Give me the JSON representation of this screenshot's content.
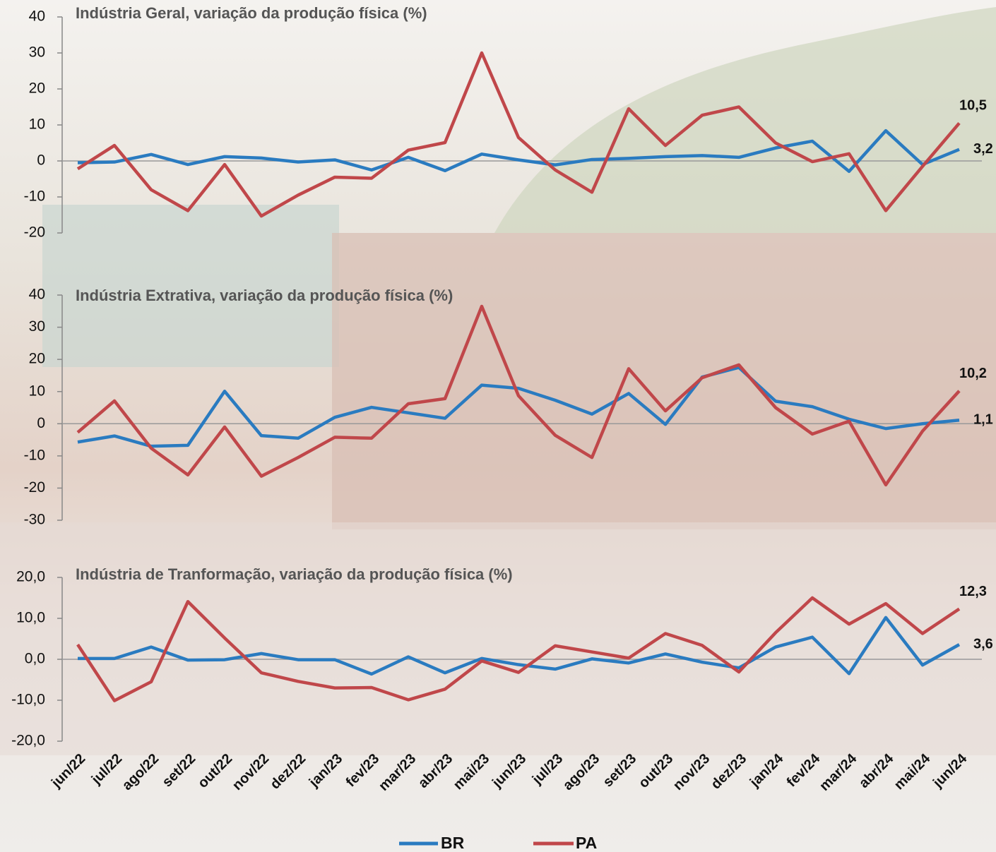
{
  "chart_data": [
    {
      "type": "line",
      "title": "Indústria Geral, variação da produção física (%)",
      "ylim": [
        -20,
        40
      ],
      "yticks": [
        -20,
        -10,
        0,
        10,
        20,
        30,
        40
      ],
      "series": [
        {
          "color": "#2a7bc0",
          "values": [
            -0.5,
            -0.3,
            1.8,
            -1,
            1.2,
            0.8,
            -0.3,
            0.3,
            -2.5,
            1,
            -2.7,
            1.9,
            0.3,
            -1.1,
            0.4,
            0.7,
            1.2,
            1.5,
            1.0,
            3.6,
            5.5,
            -2.9,
            8.4,
            -1.0,
            3.2
          ],
          "value_labels": [
            null,
            null,
            null,
            null,
            null,
            null,
            null,
            null,
            null,
            null,
            null,
            null,
            null,
            null,
            null,
            null,
            null,
            null,
            null,
            null,
            null,
            null,
            null,
            null,
            "3,2"
          ]
        },
        {
          "color": "#c0474a",
          "values": [
            -2.2,
            4.3,
            -8,
            -13.8,
            -1,
            -15.3,
            -9.5,
            -4.5,
            -4.8,
            3.0,
            5.1,
            30,
            6.5,
            -2.5,
            -8.7,
            14.5,
            4.3,
            12.7,
            15,
            5,
            -0.2,
            2,
            -13.8,
            -1.5,
            10.5
          ],
          "value_labels": [
            null,
            null,
            null,
            null,
            null,
            null,
            null,
            null,
            null,
            null,
            null,
            null,
            null,
            null,
            null,
            null,
            null,
            null,
            null,
            null,
            null,
            null,
            null,
            null,
            "10,5"
          ]
        }
      ]
    },
    {
      "type": "line",
      "title": "Indústria Extrativa, variação da produção física (%)",
      "ylim": [
        -30,
        40
      ],
      "yticks": [
        -30,
        -20,
        -10,
        0,
        10,
        20,
        30,
        40
      ],
      "series": [
        {
          "color": "#2a7bc0",
          "values": [
            -5.7,
            -3.8,
            -7,
            -6.7,
            10.1,
            -3.7,
            -4.5,
            2,
            5.1,
            3.4,
            1.7,
            12,
            11,
            7.3,
            3,
            9.4,
            -0.2,
            14.5,
            17.5,
            7,
            5.3,
            1.4,
            -1.5,
            0,
            1.1
          ],
          "value_labels": [
            null,
            null,
            null,
            null,
            null,
            null,
            null,
            null,
            null,
            null,
            null,
            null,
            null,
            null,
            null,
            null,
            null,
            null,
            null,
            null,
            null,
            null,
            null,
            null,
            "1,1"
          ]
        },
        {
          "color": "#c0474a",
          "values": [
            -2.7,
            7.1,
            -7.6,
            -15.9,
            -1,
            -16.3,
            -10.5,
            -4.2,
            -4.5,
            6.2,
            7.8,
            36.5,
            8.7,
            -3.6,
            -10.5,
            17.1,
            4,
            14.3,
            18.3,
            5,
            -3.2,
            0.8,
            -19,
            -2.3,
            10.2
          ],
          "value_labels": [
            null,
            null,
            null,
            null,
            null,
            null,
            null,
            null,
            null,
            null,
            null,
            null,
            null,
            null,
            null,
            null,
            null,
            null,
            null,
            null,
            null,
            null,
            null,
            null,
            "10,2"
          ]
        }
      ]
    },
    {
      "type": "line",
      "title": "Indústria de Tranformação, variação da produção física (%)",
      "categories": [
        "jun/22",
        "jul/22",
        "ago/22",
        "set/22",
        "out/22",
        "nov/22",
        "dez/22",
        "jan/23",
        "fev/23",
        "mar/23",
        "abr/23",
        "mai/23",
        "jun/23",
        "jul/23",
        "ago/23",
        "set/23",
        "out/23",
        "nov/23",
        "dez/23",
        "jan/24",
        "fev/24",
        "mar/24",
        "abr/24",
        "mai/24",
        "jun/24"
      ],
      "ylim": [
        -20,
        20
      ],
      "yticks": [
        {
          "value": -20,
          "label": "-20,0"
        },
        {
          "value": -10,
          "label": "-10,0"
        },
        {
          "value": 0,
          "label": "0,0"
        },
        {
          "value": 10,
          "label": "10,0"
        },
        {
          "value": 20,
          "label": "20,0"
        }
      ],
      "series": [
        {
          "name": "BR",
          "color": "#2a7bc0",
          "values": [
            0.2,
            0.2,
            3,
            -0.2,
            -0.1,
            1.4,
            -0.1,
            -0.1,
            -3.6,
            0.6,
            -3.3,
            0.2,
            -1.3,
            -2.4,
            0.1,
            -0.9,
            1.3,
            -0.7,
            -2.1,
            3,
            5.4,
            -3.5,
            10.2,
            -1.4,
            3.6
          ],
          "value_labels": [
            null,
            null,
            null,
            null,
            null,
            null,
            null,
            null,
            null,
            null,
            null,
            null,
            null,
            null,
            null,
            null,
            null,
            null,
            null,
            null,
            null,
            null,
            null,
            null,
            "3,6"
          ]
        },
        {
          "name": "PA",
          "color": "#c0474a",
          "values": [
            3.6,
            -10.1,
            -5.5,
            14.1,
            5.2,
            -3.3,
            -5.4,
            -7,
            -6.9,
            -9.9,
            -7.3,
            -0.4,
            -3.2,
            3.3,
            1.8,
            0.3,
            6.3,
            3.4,
            -3.1,
            6.5,
            15,
            8.6,
            13.6,
            6.3,
            12.3
          ],
          "value_labels": [
            null,
            null,
            null,
            null,
            null,
            null,
            null,
            null,
            null,
            null,
            null,
            null,
            null,
            null,
            null,
            null,
            null,
            null,
            null,
            null,
            null,
            null,
            null,
            null,
            "12,3"
          ]
        }
      ]
    }
  ]
}
